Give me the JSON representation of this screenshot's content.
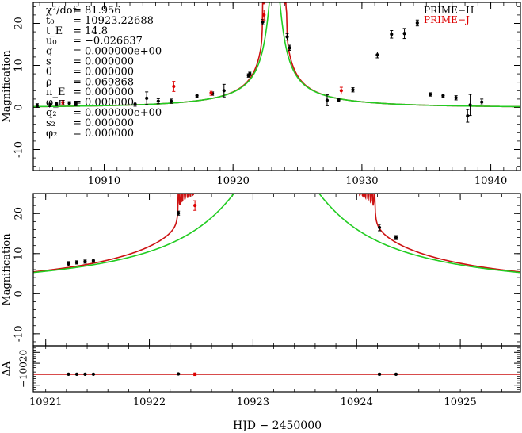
{
  "figure": {
    "xlabel": "HJD − 2450000"
  },
  "colors": {
    "prime_h": "#000000",
    "prime_j": "#dd0000",
    "model_red": "#cc1111",
    "model_green": "#22cc22",
    "axes": "#000000"
  },
  "legend": {
    "entries": [
      {
        "name": "PRIME−H",
        "color": "#000000"
      },
      {
        "name": "PRIME−J",
        "color": "#dd0000"
      }
    ]
  },
  "params": [
    {
      "label": "χ²/dof",
      "value": "= 81.956"
    },
    {
      "label": "t₀",
      "value": "= 10923.22688"
    },
    {
      "label": "t_E",
      "value": "= 14.8"
    },
    {
      "label": "u₀",
      "value": "= −0.026637"
    },
    {
      "label": "q",
      "value": "= 0.000000e+00"
    },
    {
      "label": "s",
      "value": "= 0.000000"
    },
    {
      "label": "θ",
      "value": "= 0.000000"
    },
    {
      "label": "ρ",
      "value": "= 0.069868"
    },
    {
      "label": "π_E",
      "value": "= 0.000000"
    },
    {
      "label": "φ_π",
      "value": "= 0.000000"
    },
    {
      "label": "q₂",
      "value": "= 0.000000e+00"
    },
    {
      "label": "s₂",
      "value": "= 0.000000"
    },
    {
      "label": "φ₂",
      "value": "= 0.000000"
    }
  ],
  "chart_data": [
    {
      "id": "top",
      "type": "scatter",
      "title": "",
      "xlabel": "",
      "ylabel": "Magnification",
      "xlim": [
        10904.5,
        10942.3
      ],
      "ylim": [
        -15,
        25
      ],
      "xticks": [
        10910,
        10920,
        10930,
        10940
      ],
      "yticks": [
        -10,
        0,
        10,
        20
      ],
      "models": [
        {
          "name": "finite-source model",
          "color": "#cc1111",
          "kind": "red"
        },
        {
          "name": "point-source model",
          "color": "#22cc22",
          "kind": "green"
        }
      ],
      "series": [
        {
          "name": "PRIME-H",
          "color": "#000000",
          "points": [
            {
              "x": 10904.8,
              "y": 0.5,
              "err": 0.4
            },
            {
              "x": 10905.8,
              "y": 0.6,
              "err": 0.4
            },
            {
              "x": 10906.3,
              "y": 0.8,
              "err": 0.4
            },
            {
              "x": 10907.3,
              "y": 1.0,
              "err": 0.4
            },
            {
              "x": 10907.8,
              "y": 0.8,
              "err": 0.4
            },
            {
              "x": 10912.4,
              "y": 0.8,
              "err": 0.5
            },
            {
              "x": 10913.3,
              "y": 2.2,
              "err": 1.5
            },
            {
              "x": 10914.2,
              "y": 1.5,
              "err": 0.6
            },
            {
              "x": 10915.2,
              "y": 1.5,
              "err": 0.5
            },
            {
              "x": 10917.2,
              "y": 2.8,
              "err": 0.4
            },
            {
              "x": 10918.4,
              "y": 3.3,
              "err": 0.4
            },
            {
              "x": 10919.3,
              "y": 4.0,
              "err": 1.5
            },
            {
              "x": 10921.2,
              "y": 7.6,
              "err": 0.4
            },
            {
              "x": 10921.3,
              "y": 8.0,
              "err": 0.4
            },
            {
              "x": 10922.3,
              "y": 20.3,
              "err": 0.6
            },
            {
              "x": 10924.2,
              "y": 16.8,
              "err": 0.8
            },
            {
              "x": 10924.4,
              "y": 14.2,
              "err": 0.6
            },
            {
              "x": 10927.3,
              "y": 1.7,
              "err": 1.3
            },
            {
              "x": 10928.2,
              "y": 1.8,
              "err": 0.4
            },
            {
              "x": 10929.3,
              "y": 4.2,
              "err": 0.5
            },
            {
              "x": 10931.2,
              "y": 12.5,
              "err": 0.7
            },
            {
              "x": 10932.3,
              "y": 17.4,
              "err": 0.9
            },
            {
              "x": 10933.3,
              "y": 17.6,
              "err": 1.2
            },
            {
              "x": 10934.3,
              "y": 20.1,
              "err": 0.7
            },
            {
              "x": 10935.3,
              "y": 3.1,
              "err": 0.4
            },
            {
              "x": 10936.3,
              "y": 2.8,
              "err": 0.4
            },
            {
              "x": 10937.3,
              "y": 2.3,
              "err": 0.5
            },
            {
              "x": 10938.2,
              "y": -2.0,
              "err": 1.5
            },
            {
              "x": 10938.4,
              "y": 0.6,
              "err": 2.5
            },
            {
              "x": 10939.3,
              "y": 1.3,
              "err": 0.7
            }
          ]
        },
        {
          "name": "PRIME-J",
          "color": "#dd0000",
          "points": [
            {
              "x": 10906.8,
              "y": 1.2,
              "err": 0.5
            },
            {
              "x": 10915.4,
              "y": 5.0,
              "err": 1.2
            },
            {
              "x": 10918.3,
              "y": 3.5,
              "err": 0.6
            },
            {
              "x": 10922.4,
              "y": 22.0,
              "err": 1.2
            },
            {
              "x": 10928.4,
              "y": 4.0,
              "err": 0.8
            }
          ]
        }
      ]
    },
    {
      "id": "bottom",
      "type": "scatter",
      "title": "",
      "xlabel": "HJD − 2450000",
      "ylabel": "Magnification",
      "xlim": [
        10920.88,
        10925.58
      ],
      "ylim": [
        -13,
        25
      ],
      "xticks": [
        10921,
        10922,
        10923,
        10924,
        10925
      ],
      "yticks": [
        -10,
        0,
        10,
        20
      ],
      "models": [
        {
          "name": "finite-source model",
          "color": "#cc1111",
          "kind": "red"
        },
        {
          "name": "point-source model",
          "color": "#22cc22",
          "kind": "green"
        }
      ],
      "series": [
        {
          "name": "PRIME-H",
          "color": "#000000",
          "points": [
            {
              "x": 10921.22,
              "y": 7.5,
              "err": 0.5
            },
            {
              "x": 10921.3,
              "y": 7.8,
              "err": 0.4
            },
            {
              "x": 10921.38,
              "y": 8.0,
              "err": 0.4
            },
            {
              "x": 10921.46,
              "y": 8.2,
              "err": 0.4
            },
            {
              "x": 10922.28,
              "y": 20.1,
              "err": 0.5
            },
            {
              "x": 10924.22,
              "y": 16.5,
              "err": 0.8
            },
            {
              "x": 10924.38,
              "y": 14.0,
              "err": 0.5
            }
          ]
        },
        {
          "name": "PRIME-J",
          "color": "#dd0000",
          "points": [
            {
              "x": 10922.44,
              "y": 22.0,
              "err": 1.2
            }
          ]
        }
      ]
    },
    {
      "id": "residual",
      "type": "scatter",
      "title": "",
      "xlabel": "",
      "ylabel": "ΔA",
      "xlim": [
        10920.88,
        10925.58
      ],
      "ylim": [
        -16,
        26
      ],
      "yticks": [
        -10,
        0,
        10,
        20
      ],
      "ytick_text": "−10020",
      "baseline": 0,
      "series": [
        {
          "name": "PRIME-H",
          "color": "#000000",
          "points": [
            {
              "x": 10921.22,
              "y": 0.0,
              "err": 0.5
            },
            {
              "x": 10921.3,
              "y": 0.0,
              "err": 0.4
            },
            {
              "x": 10921.38,
              "y": 0.0,
              "err": 0.4
            },
            {
              "x": 10921.46,
              "y": 0.0,
              "err": 0.4
            },
            {
              "x": 10922.28,
              "y": 0.3,
              "err": 0.5
            },
            {
              "x": 10924.22,
              "y": 0.0,
              "err": 0.8
            },
            {
              "x": 10924.38,
              "y": 0.0,
              "err": 0.5
            }
          ]
        },
        {
          "name": "PRIME-J",
          "color": "#dd0000",
          "points": [
            {
              "x": 10922.44,
              "y": 0.0,
              "err": 1.2
            }
          ]
        }
      ]
    }
  ]
}
